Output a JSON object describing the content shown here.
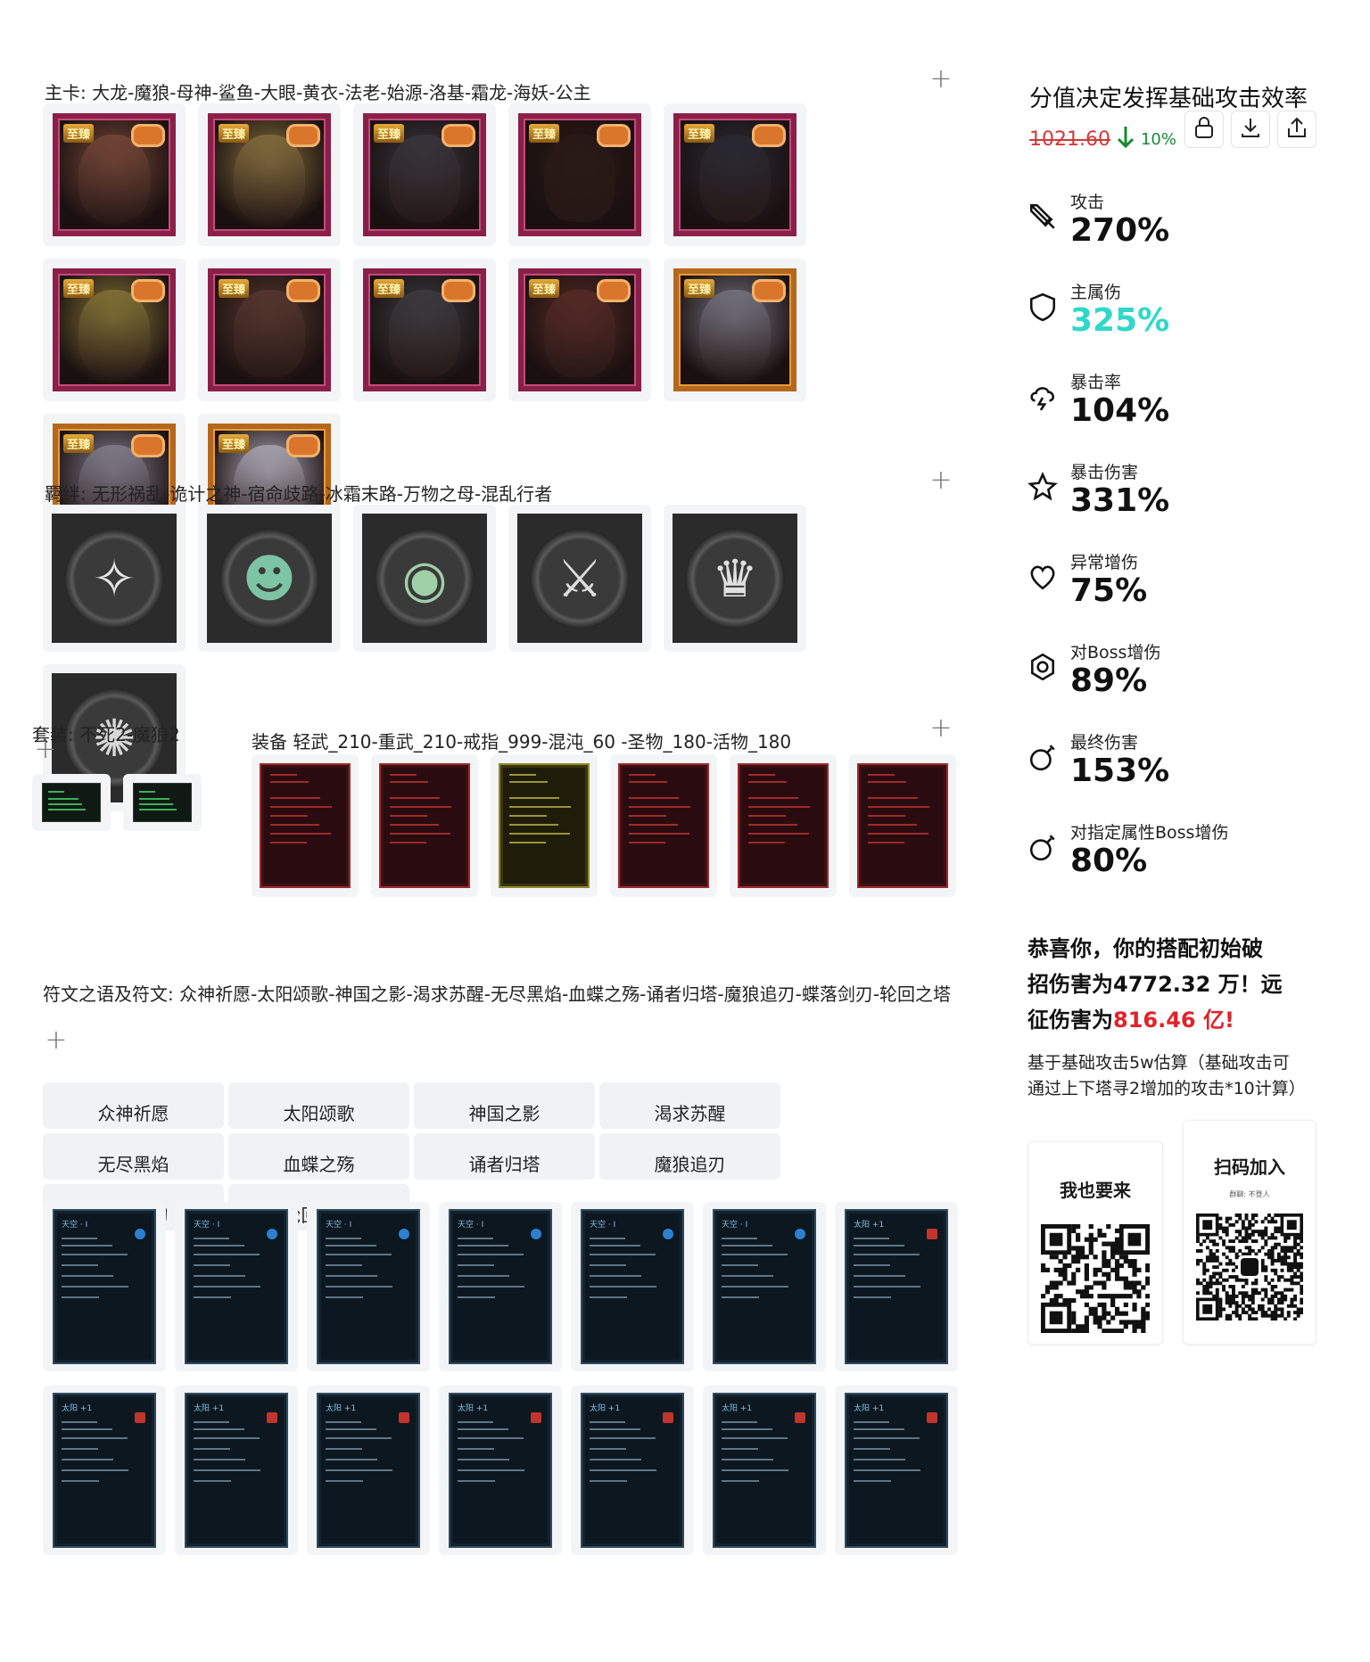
{
  "heroes": {
    "title": "主卡: 大龙-魔狼-母神-鲨鱼-大眼-黄衣-法老-始源-洛基-霜龙-海妖-公主",
    "badge": "至臻",
    "cards": [
      {
        "name": "大龙",
        "tone": "#7a4a3a",
        "style": "pink"
      },
      {
        "name": "魔狼",
        "tone": "#8a7440",
        "style": "pink"
      },
      {
        "name": "母神",
        "tone": "#3a3840",
        "style": "pink"
      },
      {
        "name": "鲨鱼",
        "tone": "#2a1a16",
        "style": "pink"
      },
      {
        "name": "大眼",
        "tone": "#2a2c36",
        "style": "pink"
      },
      {
        "name": "黄衣",
        "tone": "#8a7a38",
        "style": "pink"
      },
      {
        "name": "法老",
        "tone": "#5a3a30",
        "style": "pink"
      },
      {
        "name": "始源",
        "tone": "#3e3e44",
        "style": "pink"
      },
      {
        "name": "洛基",
        "tone": "#5a2c28",
        "style": "pink"
      },
      {
        "name": "霜龙",
        "tone": "#7a7a88",
        "style": "orange"
      },
      {
        "name": "海妖",
        "tone": "#8a8696",
        "style": "orange"
      },
      {
        "name": "公主",
        "tone": "#b6b2c0",
        "style": "orange"
      }
    ]
  },
  "bonds": {
    "title": "羁绊: 无形祸乱-诡计之神-宿命歧路-冰霜末路-万物之母-混乱行者",
    "items": [
      {
        "name": "无形祸乱",
        "glyph": "✧",
        "color": "#e8e8e8"
      },
      {
        "name": "诡计之神",
        "glyph": "☻",
        "color": "#7cc4a4"
      },
      {
        "name": "宿命歧路",
        "glyph": "◉",
        "color": "#9fd0a8"
      },
      {
        "name": "冰霜末路",
        "glyph": "⚔",
        "color": "#dcdcdc"
      },
      {
        "name": "万物之母",
        "glyph": "♛",
        "color": "#e0e0e0"
      },
      {
        "name": "混乱行者",
        "glyph": "✺",
        "color": "#d8d8d8"
      }
    ]
  },
  "sets": {
    "title": "套装: 不死2-魔狼2",
    "items": [
      {
        "name": "不死"
      },
      {
        "name": "魔狼"
      }
    ]
  },
  "equipment": {
    "title": "装备 轻武_210-重武_210-戒指_999-混沌_60 -圣物_180-活物_180",
    "items": [
      {
        "name": "轻武",
        "style": "red"
      },
      {
        "name": "重武",
        "style": "red"
      },
      {
        "name": "戒指",
        "style": "gold"
      },
      {
        "name": "混沌",
        "style": "red"
      },
      {
        "name": "圣物",
        "style": "red"
      },
      {
        "name": "活物",
        "style": "red"
      }
    ]
  },
  "runes": {
    "title": "符文之语及符文: 众神祈愿-太阳颂歌-神国之影-渴求苏醒-无尽黑焰-血蝶之殇-诵者归塔-魔狼追刃-蝶落剑刃-轮回之塔",
    "tabs": [
      "众神祈愿",
      "太阳颂歌",
      "神国之影",
      "渴求苏醒",
      "无尽黑焰",
      "血蝶之殇",
      "诵者归塔",
      "魔狼追刃",
      "蝶落剑刃",
      "轮回之塔"
    ],
    "cards_row1": [
      {
        "title": "天空 · I",
        "type": "blue"
      },
      {
        "title": "天空 · I",
        "type": "blue"
      },
      {
        "title": "天空 · I",
        "type": "blue"
      },
      {
        "title": "天空 · I",
        "type": "blue"
      },
      {
        "title": "天空 · I",
        "type": "blue"
      },
      {
        "title": "天空 · I",
        "type": "blue"
      },
      {
        "title": "太阳 +1",
        "type": "red"
      }
    ],
    "cards_row2": [
      {
        "title": "太阳 +1",
        "type": "red"
      },
      {
        "title": "太阳 +1",
        "type": "red"
      },
      {
        "title": "太阳 +1",
        "type": "red"
      },
      {
        "title": "太阳 +1",
        "type": "red"
      },
      {
        "title": "太阳 +1",
        "type": "red"
      },
      {
        "title": "太阳 +1",
        "type": "red"
      },
      {
        "title": "太阳 +1",
        "type": "red"
      }
    ]
  },
  "score": {
    "title": "分值决定发挥基础攻击效率",
    "value": "1021.60",
    "delta": "10%"
  },
  "stats": [
    {
      "label": "攻击",
      "value": "270%",
      "color": "#111111",
      "icon": "sword-icon"
    },
    {
      "label": "主属伤",
      "value": "325%",
      "color": "#2fd8c8",
      "icon": "shield-icon"
    },
    {
      "label": "暴击率",
      "value": "104%",
      "color": "#111111",
      "icon": "storm-cloud-icon"
    },
    {
      "label": "暴击伤害",
      "value": "331%",
      "color": "#111111",
      "icon": "star-icon"
    },
    {
      "label": "异常增伤",
      "value": "75%",
      "color": "#111111",
      "icon": "heart-icon"
    },
    {
      "label": "对Boss增伤",
      "value": "89%",
      "color": "#111111",
      "icon": "hexagon-icon"
    },
    {
      "label": "最终伤害",
      "value": "153%",
      "color": "#111111",
      "icon": "bomb-icon"
    },
    {
      "label": "对指定属性Boss增伤",
      "value": "80%",
      "color": "#111111",
      "icon": "bomb-icon"
    }
  ],
  "result": {
    "line1": "恭喜你，你的搭配初始破",
    "line2a": "招伤害为",
    "dmg_a": "4772.32",
    "unit_a": "万",
    "line2b": "！远",
    "line3a": "征伤害为",
    "dmg_b": "816.46 亿!",
    "note": "基于基础攻击5w估算（基础攻击可通过上下塔寻2增加的攻击*10计算）"
  },
  "qr": {
    "left_title": "我也要来",
    "right_title": "扫码加入",
    "right_sub": "群聊: 不登人"
  },
  "colors": {
    "accent_red": "#e2212b",
    "teal": "#2fd8c8",
    "delta_green": "#178a33"
  }
}
